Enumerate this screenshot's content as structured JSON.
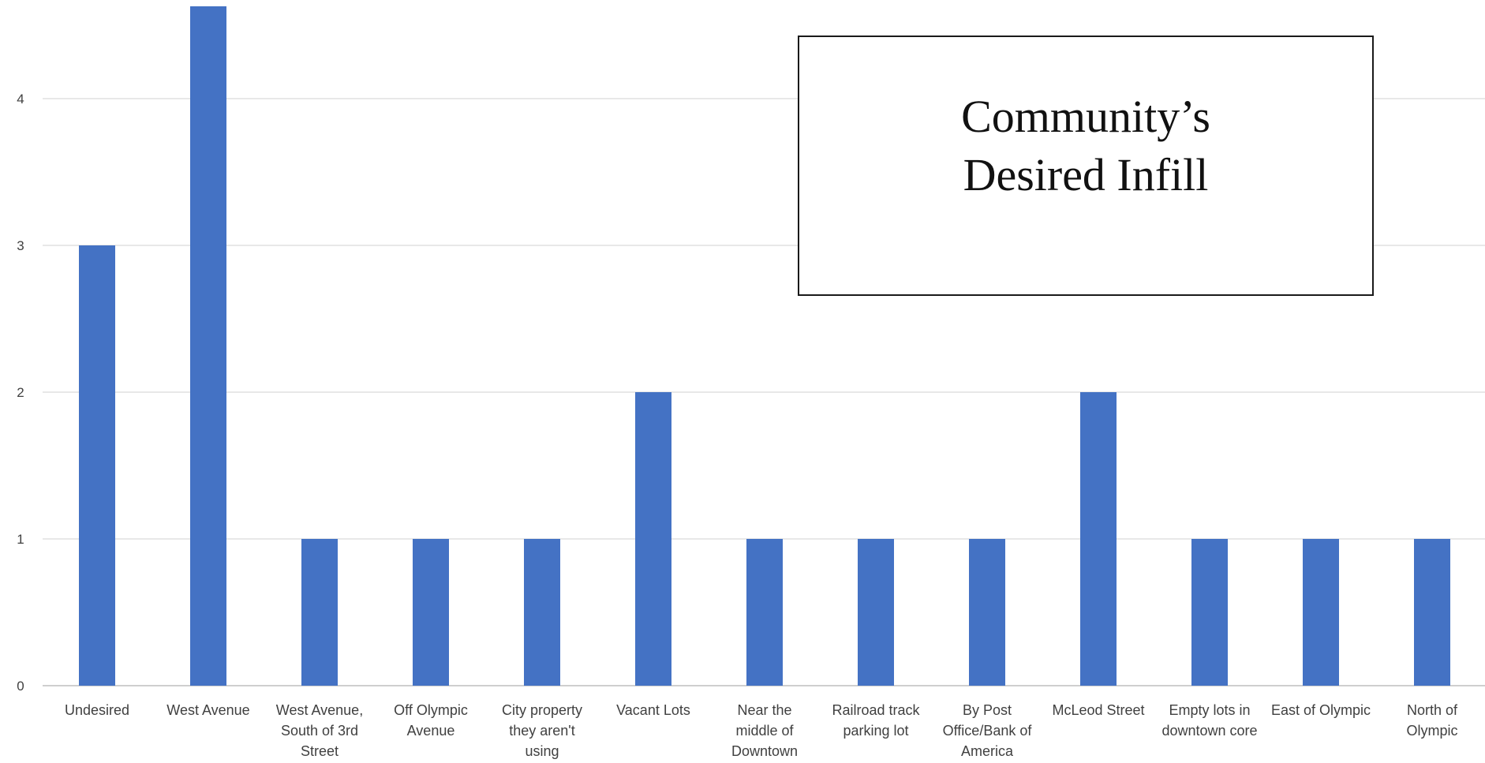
{
  "chart_data": {
    "type": "bar",
    "title_lines": [
      "Community’s",
      "Desired Infill"
    ],
    "xlabel": "",
    "ylabel": "",
    "categories": [
      [
        "Undesired"
      ],
      [
        "West Avenue"
      ],
      [
        "West Avenue,",
        "South of 3rd",
        "Street"
      ],
      [
        "Off Olympic",
        "Avenue"
      ],
      [
        "City property",
        "they aren't",
        "using"
      ],
      [
        "Vacant Lots"
      ],
      [
        "Near the",
        "middle of",
        "Downtown"
      ],
      [
        "Railroad track",
        "parking lot"
      ],
      [
        "By Post",
        "Office/Bank of",
        "America"
      ],
      [
        "McLeod Street"
      ],
      [
        "Empty lots in",
        "downtown core"
      ],
      [
        "East of Olympic"
      ],
      [
        "North of",
        "Olympic"
      ]
    ],
    "values": [
      3,
      5,
      1,
      1,
      1,
      2,
      1,
      1,
      1,
      2,
      1,
      1,
      1
    ],
    "yticks": [
      0,
      1,
      2,
      3,
      4
    ],
    "ylim": [
      0,
      4.6
    ],
    "grid": true,
    "bar_color": "#4472C4"
  }
}
